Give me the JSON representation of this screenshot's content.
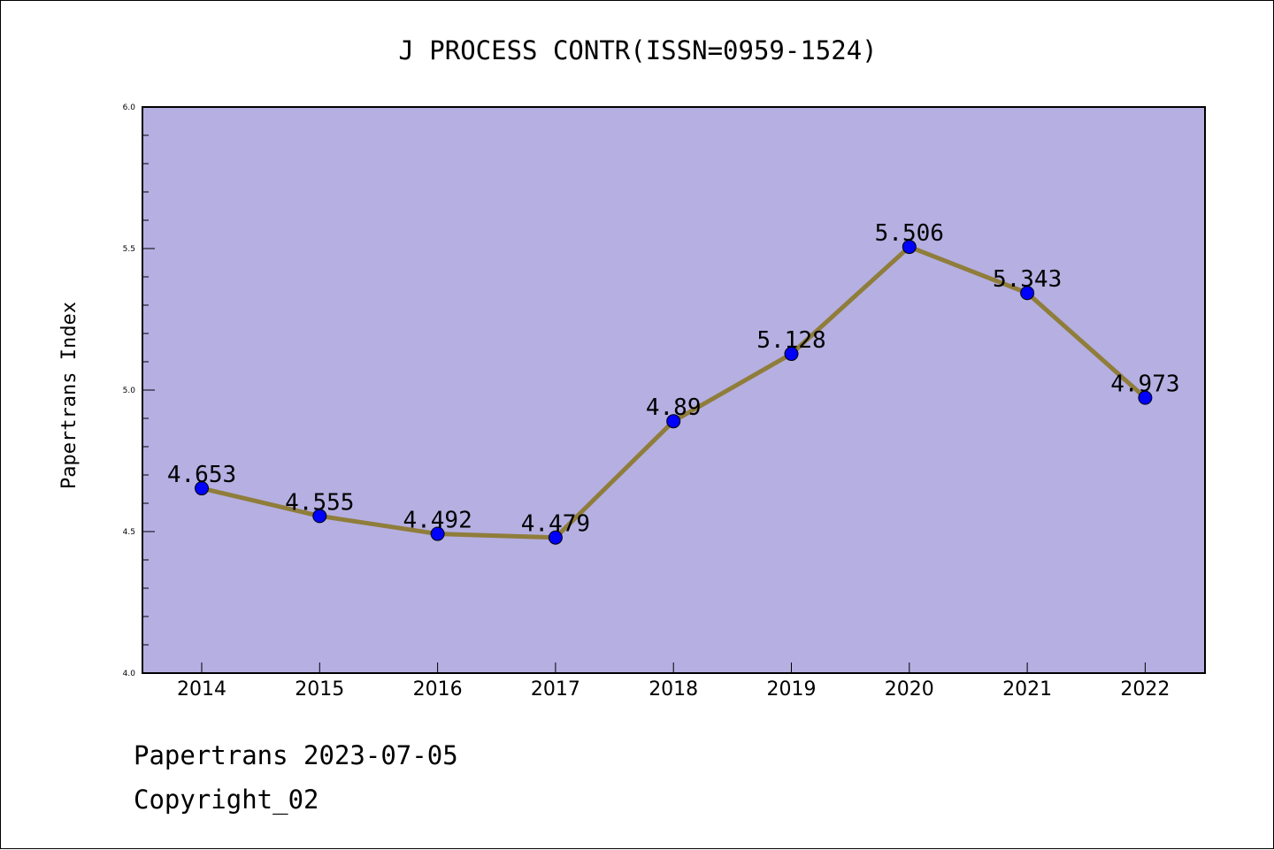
{
  "chart_data": {
    "type": "line",
    "title": "J PROCESS CONTR(ISSN=0959-1524)",
    "xlabel": "",
    "ylabel": "Papertrans Index",
    "categories": [
      "2014",
      "2015",
      "2016",
      "2017",
      "2018",
      "2019",
      "2020",
      "2021",
      "2022"
    ],
    "series": [
      {
        "values": [
          4.653,
          4.555,
          4.492,
          4.479,
          4.89,
          5.128,
          5.506,
          5.343,
          4.973
        ],
        "data_labels": [
          "4.653",
          "4.555",
          "4.492",
          "4.479",
          "4.89",
          "5.128",
          "5.506",
          "5.343",
          "4.973"
        ]
      }
    ],
    "ylim": [
      4.0,
      6.0
    ],
    "yticks": [
      4.0,
      4.5,
      5.0,
      5.5,
      6.0
    ],
    "ytick_labels": [
      "4.0",
      "4.5",
      "5.0",
      "5.5",
      "6.0"
    ],
    "grid": false,
    "colors": {
      "plot_background": "#b5afe2",
      "line": "#8f7d3a",
      "marker": "#0000ff",
      "axis": "#000000"
    }
  },
  "footer": {
    "line1": "Papertrans 2023-07-05",
    "line2": "Copyright_02"
  }
}
